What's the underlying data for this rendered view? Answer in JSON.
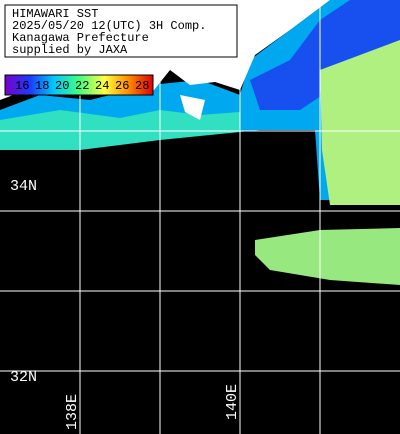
{
  "header": {
    "lines": [
      "HIMAWARI SST",
      "2025/05/20 12(UTC) 3H Comp.",
      "Kanagawa Prefecture",
      "supplied by JAXA"
    ]
  },
  "colorbar": {
    "labels": [
      "16",
      "18",
      "20",
      "22",
      "24",
      "26",
      "28"
    ]
  },
  "grid_labels": {
    "latitudes": [
      "34N",
      "32N"
    ],
    "longitudes": [
      "138E",
      "140E"
    ]
  }
}
